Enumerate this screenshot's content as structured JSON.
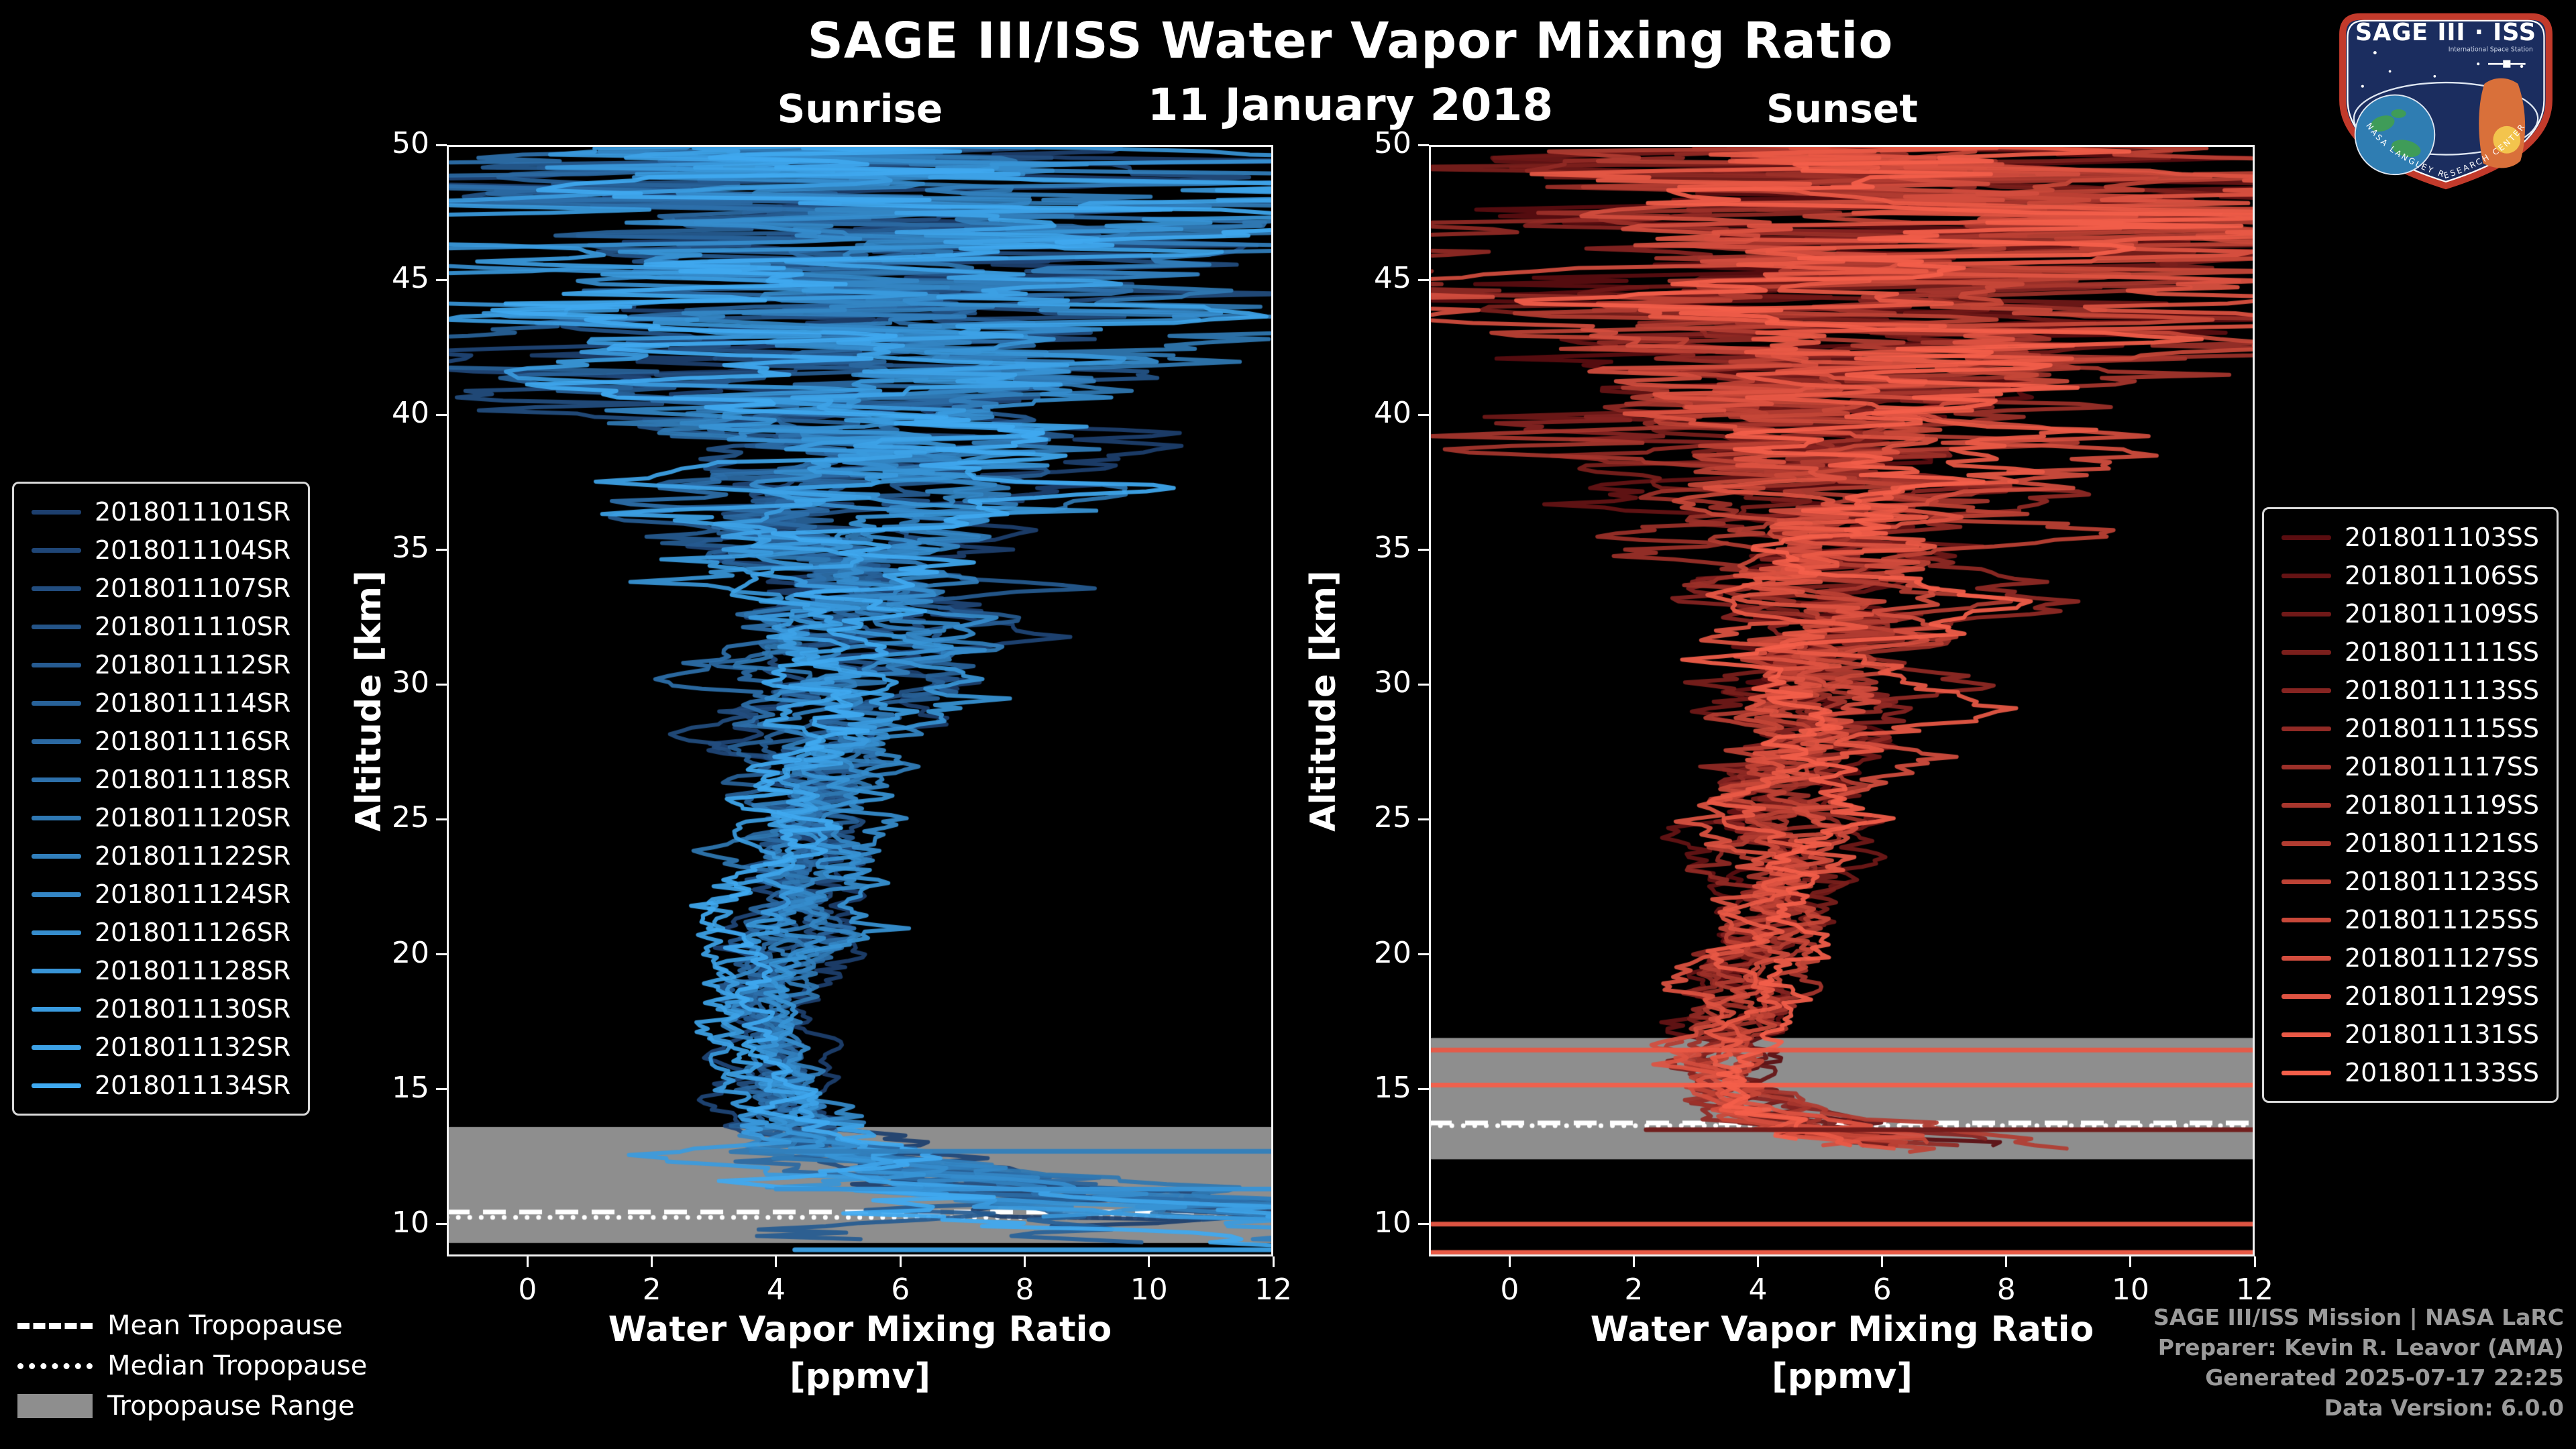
{
  "title": "SAGE III/ISS Water Vapor Mixing Ratio",
  "date_line": "11 January 2018",
  "tropopause_legend": {
    "mean_label": "Mean Tropopause",
    "median_label": "Median Tropopause",
    "range_label": "Tropopause Range"
  },
  "credits": {
    "line1": "SAGE III/ISS Mission | NASA LaRC",
    "line2": "Preparer: Kevin R. Leavor (AMA)",
    "line3": "Generated 2025-07-17 22:25",
    "line4": "Data Version: 6.0.0"
  },
  "logo": {
    "title": "SAGE III · ISS",
    "subtitle": "International Space Station",
    "ring_text": "NASA LANGLEY RESEARCH CENTER",
    "colors": {
      "field": "#1b2d5f",
      "border": "#c23a2b",
      "earth_ocean": "#2f7db2",
      "earth_land": "#3f9c58",
      "figure": "#d9703a",
      "sun": "#f3c44d"
    }
  },
  "colors": {
    "background": "#000000",
    "text": "#ffffff",
    "axis": "#f2f2f2",
    "credit_text": "#9b9b9b",
    "band": "#8e8e8e",
    "sunrise_dark": "#1d3f6e",
    "sunrise_bright": "#3fa9f0",
    "sunset_dark": "#5a0d10",
    "sunset_bright": "#f45f4a"
  },
  "chart_data": {
    "type": "line",
    "title": "SAGE III/ISS Water Vapor Mixing Ratio",
    "subtitle": "11 January 2018",
    "xlabel": "Water Vapor Mixing Ratio",
    "xunit": "[ppmv]",
    "ylabel": "Altitude [km]",
    "xlim": [
      -1.3,
      12.0
    ],
    "ylim": [
      8.8,
      50.0
    ],
    "x_ticks": [
      0,
      2,
      4,
      6,
      8,
      10,
      12
    ],
    "y_ticks": [
      10,
      15,
      20,
      25,
      30,
      35,
      40,
      45,
      50
    ],
    "grid": false,
    "panels": [
      {
        "name": "Sunrise",
        "events": [
          "2018011101SR",
          "2018011104SR",
          "2018011107SR",
          "2018011110SR",
          "2018011112SR",
          "2018011114SR",
          "2018011116SR",
          "2018011118SR",
          "2018011120SR",
          "2018011122SR",
          "2018011124SR",
          "2018011126SR",
          "2018011128SR",
          "2018011130SR",
          "2018011132SR",
          "2018011134SR"
        ],
        "tropopause": {
          "mean_km": 10.45,
          "median_km": 10.25,
          "range_km": [
            9.3,
            13.6
          ]
        },
        "mean_profile": {
          "altitude_km": [
            8.8,
            9.5,
            10.5,
            11.5,
            12.5,
            13.5,
            14.5,
            16.0,
            18.0,
            20.0,
            25.0,
            30.0,
            35.0,
            40.0,
            45.0,
            50.0
          ],
          "ppmv": [
            12.5,
            11.0,
            8.8,
            6.8,
            5.2,
            4.3,
            3.9,
            3.8,
            3.9,
            4.05,
            4.5,
            4.9,
            5.3,
            5.6,
            5.9,
            6.0
          ]
        },
        "spread_profile": {
          "altitude_km": [
            8.8,
            10.0,
            11.0,
            12.0,
            13.0,
            14.0,
            16.0,
            18.0,
            22.0,
            26.0,
            30.0,
            34.0,
            38.0,
            42.0,
            46.0,
            50.0
          ],
          "sigma_ppmv": [
            3.2,
            2.8,
            2.2,
            1.5,
            0.8,
            0.55,
            0.38,
            0.4,
            0.5,
            0.65,
            0.85,
            1.2,
            1.8,
            3.0,
            4.0,
            4.6
          ]
        },
        "profile_bottom_km": [
          8.8,
          10.8
        ],
        "extra_lines": [
          {
            "altitude_km": 12.7,
            "x_from": 3.6,
            "x_to": 12.0,
            "color_index": 9
          },
          {
            "altitude_km": 11.3,
            "x_from": 4.0,
            "x_to": 12.0,
            "color_index": 12
          },
          {
            "altitude_km": 9.05,
            "x_from": 4.3,
            "x_to": 12.0,
            "color_index": 14
          }
        ],
        "seed": 11
      },
      {
        "name": "Sunset",
        "events": [
          "2018011103SS",
          "2018011106SS",
          "2018011109SS",
          "2018011111SS",
          "2018011113SS",
          "2018011115SS",
          "2018011117SS",
          "2018011119SS",
          "2018011121SS",
          "2018011123SS",
          "2018011125SS",
          "2018011127SS",
          "2018011129SS",
          "2018011131SS",
          "2018011133SS"
        ],
        "tropopause": {
          "mean_km": 13.75,
          "median_km": 13.65,
          "range_km": [
            12.4,
            16.9
          ]
        },
        "mean_profile": {
          "altitude_km": [
            12.6,
            13.0,
            13.6,
            14.2,
            15.0,
            16.0,
            17.0,
            18.0,
            21.0,
            25.0,
            30.0,
            35.0,
            40.0,
            45.0,
            50.0
          ],
          "ppmv": [
            7.6,
            6.2,
            4.9,
            4.2,
            3.7,
            3.45,
            3.5,
            3.7,
            4.1,
            4.5,
            4.9,
            5.3,
            5.7,
            5.9,
            6.1
          ]
        },
        "spread_profile": {
          "altitude_km": [
            12.6,
            13.5,
            14.5,
            16.0,
            18.0,
            22.0,
            26.0,
            30.0,
            34.0,
            38.0,
            42.0,
            46.0,
            50.0
          ],
          "sigma_ppmv": [
            1.4,
            0.9,
            0.6,
            0.45,
            0.45,
            0.55,
            0.7,
            0.9,
            1.25,
            1.9,
            3.0,
            4.0,
            4.5
          ]
        },
        "profile_bottom_km": [
          12.6,
          13.2
        ],
        "extra_lines": [
          {
            "altitude_km": 16.45,
            "x_from": -1.3,
            "x_to": 12.0,
            "color_index": 13
          },
          {
            "altitude_km": 15.15,
            "x_from": -1.3,
            "x_to": 12.0,
            "color_index": 14
          },
          {
            "altitude_km": 13.5,
            "x_from": 2.2,
            "x_to": 12.0,
            "color_index": 2
          },
          {
            "altitude_km": 10.0,
            "x_from": -1.3,
            "x_to": 12.0,
            "color_index": 13
          },
          {
            "altitude_km": 8.95,
            "x_from": -1.3,
            "x_to": 12.0,
            "color_index": 14
          }
        ],
        "seed": 77
      }
    ]
  }
}
